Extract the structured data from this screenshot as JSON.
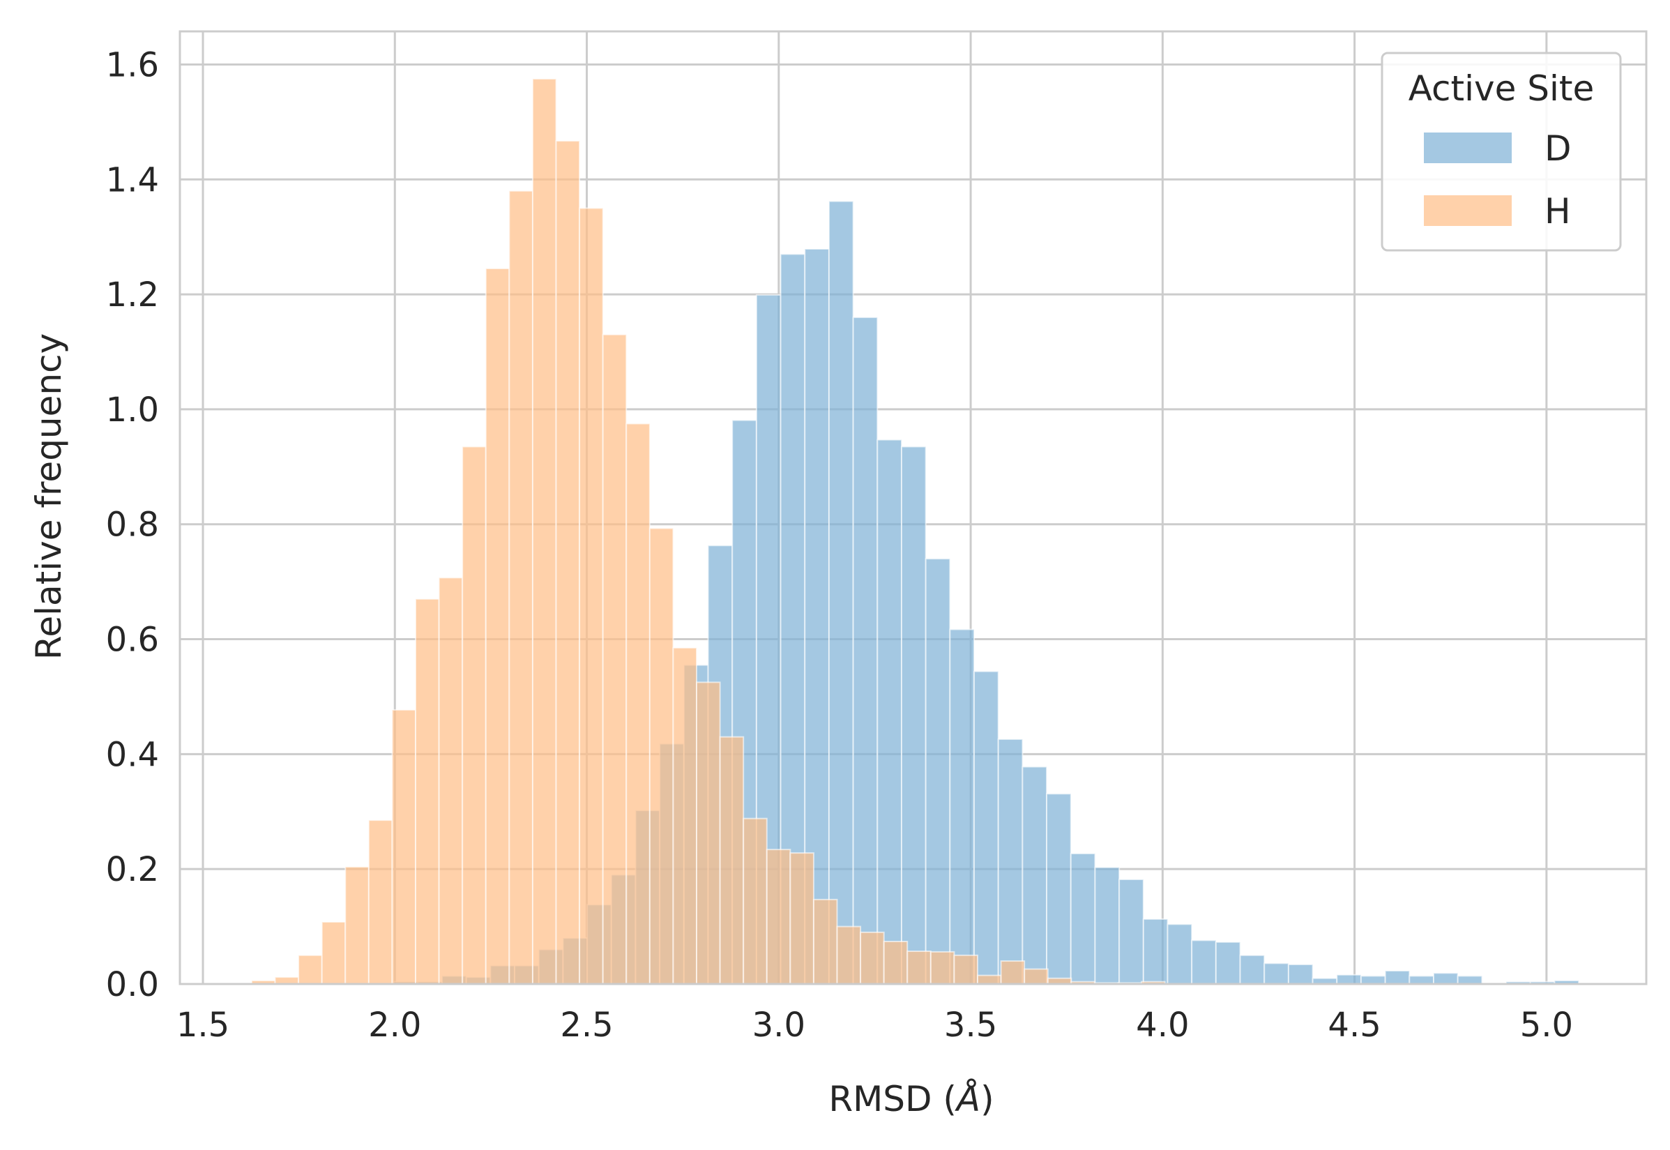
{
  "chart_data": {
    "type": "bar",
    "subtype": "overlapping-histogram",
    "xlabel_prefix": "RMSD (",
    "xlabel_unit": "Å",
    "xlabel_suffix": ")",
    "ylabel": "Relative frequency",
    "xlim": [
      1.44,
      5.26
    ],
    "ylim": [
      0,
      1.6576
    ],
    "xticks": [
      {
        "value": 1.5,
        "label": "1.5"
      },
      {
        "value": 2.0,
        "label": "2.0"
      },
      {
        "value": 2.5,
        "label": "2.5"
      },
      {
        "value": 3.0,
        "label": "3.0"
      },
      {
        "value": 3.5,
        "label": "3.5"
      },
      {
        "value": 4.0,
        "label": "4.0"
      },
      {
        "value": 4.5,
        "label": "4.5"
      },
      {
        "value": 5.0,
        "label": "5.0"
      }
    ],
    "yticks": [
      {
        "value": 0.0,
        "label": "0.0"
      },
      {
        "value": 0.2,
        "label": "0.2"
      },
      {
        "value": 0.4,
        "label": "0.4"
      },
      {
        "value": 0.6,
        "label": "0.6"
      },
      {
        "value": 0.8,
        "label": "0.8"
      },
      {
        "value": 1.0,
        "label": "1.0"
      },
      {
        "value": 1.2,
        "label": "1.2"
      },
      {
        "value": 1.4,
        "label": "1.4"
      },
      {
        "value": 1.6,
        "label": "1.6"
      }
    ],
    "grid": true,
    "legend": {
      "title": "Active Site",
      "placement": "top-right"
    },
    "series": [
      {
        "name": "D",
        "color": "#7eb0d5",
        "opacity": 0.7,
        "bins": [
          [
            1.997,
            2.06,
            0.004
          ],
          [
            2.06,
            2.123,
            0.004
          ],
          [
            2.123,
            2.186,
            0.014
          ],
          [
            2.186,
            2.249,
            0.012
          ],
          [
            2.249,
            2.312,
            0.032
          ],
          [
            2.312,
            2.375,
            0.032
          ],
          [
            2.375,
            2.438,
            0.06
          ],
          [
            2.438,
            2.501,
            0.08
          ],
          [
            2.501,
            2.564,
            0.138
          ],
          [
            2.564,
            2.627,
            0.19
          ],
          [
            2.627,
            2.69,
            0.302
          ],
          [
            2.69,
            2.753,
            0.418
          ],
          [
            2.753,
            2.816,
            0.555
          ],
          [
            2.816,
            2.879,
            0.763
          ],
          [
            2.879,
            2.942,
            0.981
          ],
          [
            2.942,
            3.005,
            1.199
          ],
          [
            3.005,
            3.068,
            1.27
          ],
          [
            3.068,
            3.131,
            1.279
          ],
          [
            3.131,
            3.194,
            1.362
          ],
          [
            3.194,
            3.257,
            1.16
          ],
          [
            3.257,
            3.32,
            0.947
          ],
          [
            3.32,
            3.383,
            0.935
          ],
          [
            3.383,
            3.446,
            0.74
          ],
          [
            3.446,
            3.509,
            0.617
          ],
          [
            3.509,
            3.572,
            0.544
          ],
          [
            3.572,
            3.635,
            0.426
          ],
          [
            3.635,
            3.698,
            0.378
          ],
          [
            3.698,
            3.761,
            0.331
          ],
          [
            3.761,
            3.824,
            0.227
          ],
          [
            3.824,
            3.887,
            0.203
          ],
          [
            3.887,
            3.95,
            0.182
          ],
          [
            3.95,
            4.013,
            0.113
          ],
          [
            4.013,
            4.076,
            0.104
          ],
          [
            4.076,
            4.139,
            0.076
          ],
          [
            4.139,
            4.202,
            0.073
          ],
          [
            4.202,
            4.265,
            0.05
          ],
          [
            4.265,
            4.328,
            0.036
          ],
          [
            4.328,
            4.391,
            0.034
          ],
          [
            4.391,
            4.454,
            0.01
          ],
          [
            4.454,
            4.517,
            0.016
          ],
          [
            4.517,
            4.58,
            0.014
          ],
          [
            4.58,
            4.643,
            0.023
          ],
          [
            4.643,
            4.706,
            0.014
          ],
          [
            4.706,
            4.769,
            0.019
          ],
          [
            4.769,
            4.832,
            0.014
          ],
          [
            4.895,
            4.958,
            0.004
          ],
          [
            4.958,
            5.021,
            0.004
          ],
          [
            5.021,
            5.084,
            0.006
          ]
        ]
      },
      {
        "name": "H",
        "color": "#ffbe86",
        "opacity": 0.7,
        "bins": [
          [
            1.627,
            1.688,
            0.006
          ],
          [
            1.688,
            1.749,
            0.012
          ],
          [
            1.749,
            1.81,
            0.05
          ],
          [
            1.81,
            1.871,
            0.108
          ],
          [
            1.871,
            1.932,
            0.204
          ],
          [
            1.932,
            1.993,
            0.285
          ],
          [
            1.993,
            2.054,
            0.477
          ],
          [
            2.054,
            2.115,
            0.67
          ],
          [
            2.115,
            2.176,
            0.707
          ],
          [
            2.176,
            2.237,
            0.935
          ],
          [
            2.237,
            2.298,
            1.245
          ],
          [
            2.298,
            2.359,
            1.38
          ],
          [
            2.359,
            2.42,
            1.575
          ],
          [
            2.42,
            2.481,
            1.467
          ],
          [
            2.481,
            2.542,
            1.35
          ],
          [
            2.542,
            2.603,
            1.13
          ],
          [
            2.603,
            2.664,
            0.975
          ],
          [
            2.664,
            2.725,
            0.793
          ],
          [
            2.725,
            2.786,
            0.585
          ],
          [
            2.786,
            2.847,
            0.525
          ],
          [
            2.847,
            2.908,
            0.43
          ],
          [
            2.908,
            2.969,
            0.288
          ],
          [
            2.969,
            3.03,
            0.234
          ],
          [
            3.03,
            3.091,
            0.228
          ],
          [
            3.091,
            3.152,
            0.147
          ],
          [
            3.152,
            3.213,
            0.1
          ],
          [
            3.213,
            3.274,
            0.09
          ],
          [
            3.274,
            3.335,
            0.074
          ],
          [
            3.335,
            3.396,
            0.057
          ],
          [
            3.396,
            3.457,
            0.056
          ],
          [
            3.457,
            3.518,
            0.05
          ],
          [
            3.518,
            3.579,
            0.015
          ],
          [
            3.579,
            3.64,
            0.04
          ],
          [
            3.64,
            3.701,
            0.026
          ],
          [
            3.701,
            3.762,
            0.01
          ],
          [
            3.762,
            3.823,
            0.004
          ],
          [
            3.823,
            3.884,
            0.002
          ],
          [
            3.884,
            3.945,
            0.002
          ],
          [
            3.945,
            4.006,
            0.004
          ]
        ]
      }
    ]
  }
}
